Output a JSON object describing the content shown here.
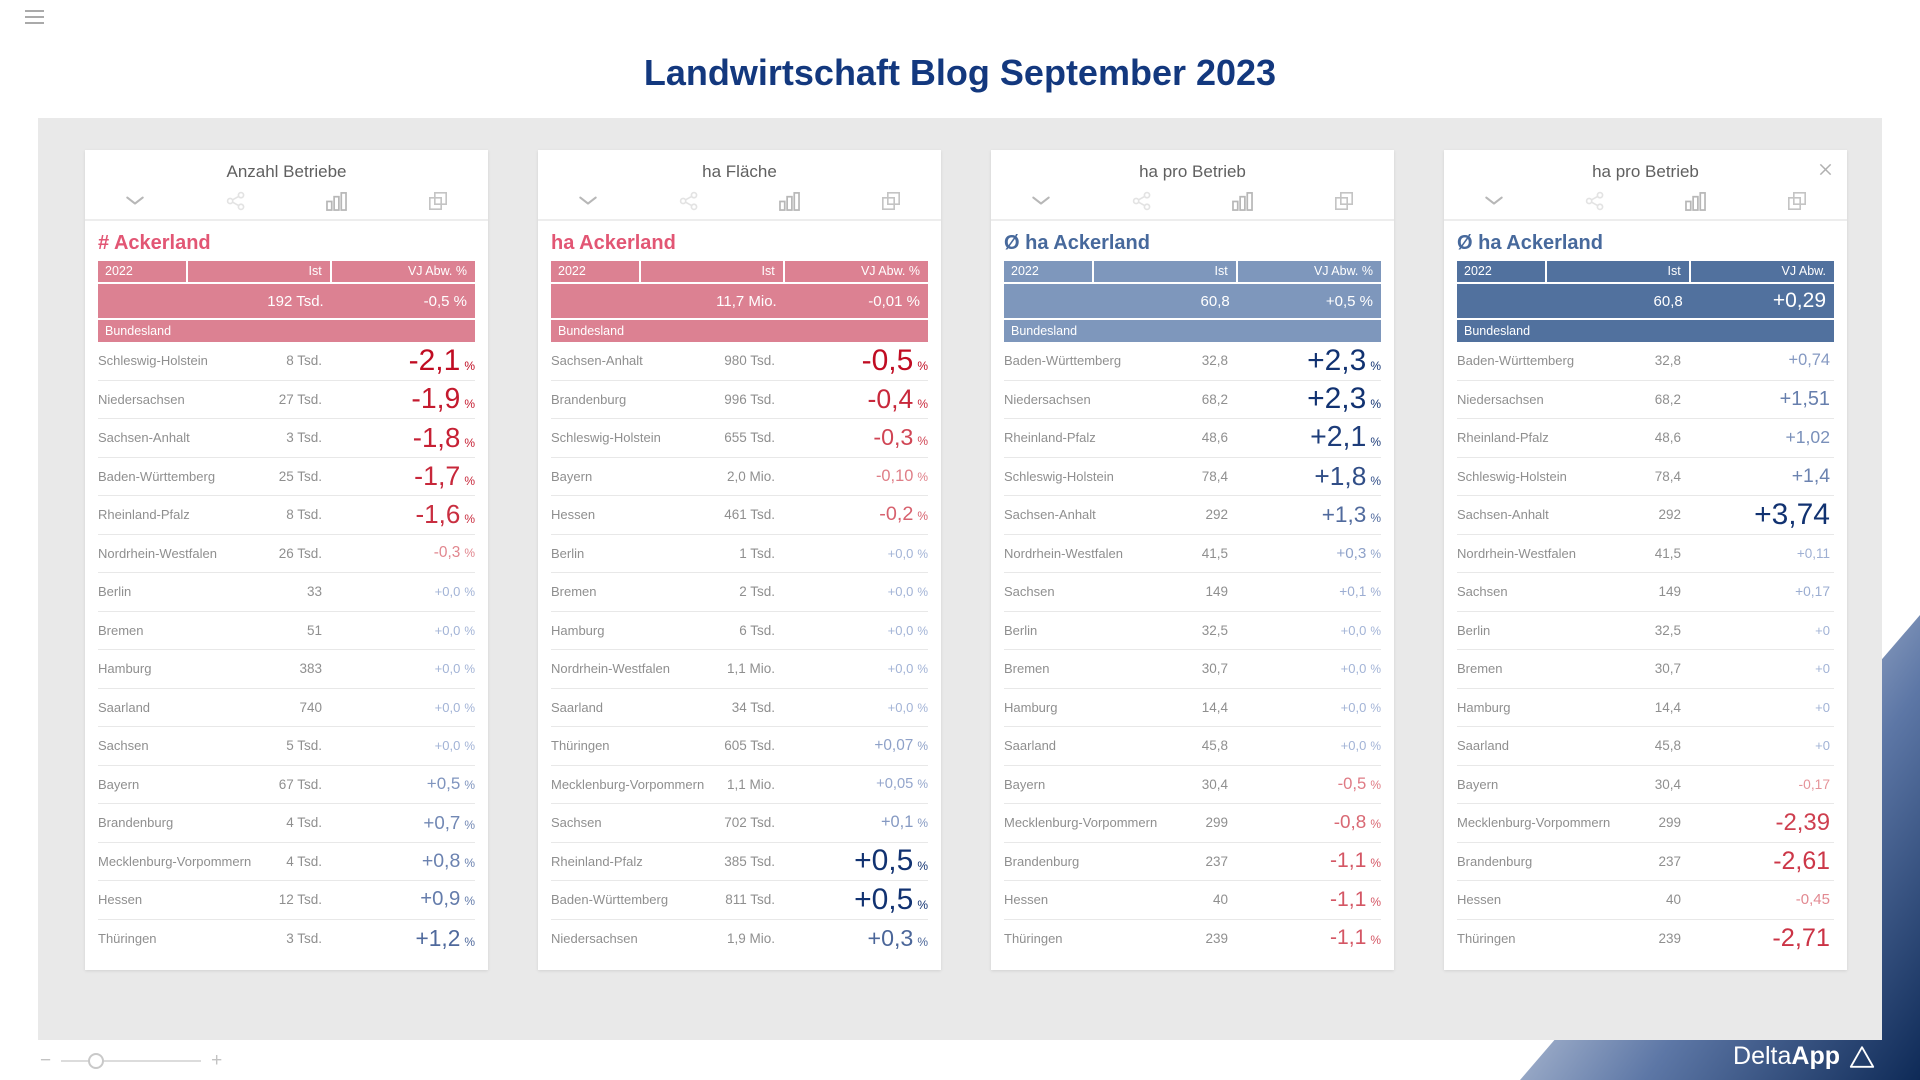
{
  "page": {
    "title": "Landwirtschaft Blog September 2023",
    "title_color": "#13387e",
    "board_color": "#e9e9e9",
    "brand": {
      "name_light": "Delta",
      "name_bold": "App",
      "triangle_icon": "△"
    }
  },
  "icons": {
    "menu": "hamburger",
    "collapse": "chevron-down",
    "share": "share-nodes",
    "chart": "column-chart",
    "overlay": "copy-windows",
    "close": "×"
  },
  "zoom_slider": {
    "minus_label": "−",
    "plus_label": "+",
    "position_pct": 25
  },
  "dev_color_scale": {
    "neg_low": "#e79aa0",
    "neg_high": "#c00c22",
    "pos_low": "#a2b3d6",
    "pos_high": "#113271"
  },
  "panels": [
    {
      "window_title": "Anzahl Betriebe",
      "kpi_title": "# Ackerland",
      "kpi_title_color": "#e25674",
      "header_color": "#dc8192",
      "closable": false,
      "columns": {
        "year": "2022",
        "ist": "Ist",
        "dev": "VJ Abw. %"
      },
      "total": {
        "ist": "192 Tsd.",
        "dev": "-0,5 %",
        "emphasized": false
      },
      "group_label": "Bundesland",
      "dev_unit": "%",
      "rows": [
        {
          "name": "Schleswig-Holstein",
          "ist": "8 Tsd.",
          "dev": "-2,1"
        },
        {
          "name": "Niedersachsen",
          "ist": "27 Tsd.",
          "dev": "-1,9"
        },
        {
          "name": "Sachsen-Anhalt",
          "ist": "3 Tsd.",
          "dev": "-1,8"
        },
        {
          "name": "Baden-Württemberg",
          "ist": "25 Tsd.",
          "dev": "-1,7"
        },
        {
          "name": "Rheinland-Pfalz",
          "ist": "8 Tsd.",
          "dev": "-1,6"
        },
        {
          "name": "Nordrhein-Westfalen",
          "ist": "26 Tsd.",
          "dev": "-0,3"
        },
        {
          "name": "Berlin",
          "ist": "33",
          "dev": "+0,0"
        },
        {
          "name": "Bremen",
          "ist": "51",
          "dev": "+0,0"
        },
        {
          "name": "Hamburg",
          "ist": "383",
          "dev": "+0,0"
        },
        {
          "name": "Saarland",
          "ist": "740",
          "dev": "+0,0"
        },
        {
          "name": "Sachsen",
          "ist": "5 Tsd.",
          "dev": "+0,0"
        },
        {
          "name": "Bayern",
          "ist": "67 Tsd.",
          "dev": "+0,5"
        },
        {
          "name": "Brandenburg",
          "ist": "4 Tsd.",
          "dev": "+0,7"
        },
        {
          "name": "Mecklenburg-Vorpommern",
          "ist": "4 Tsd.",
          "dev": "+0,8"
        },
        {
          "name": "Hessen",
          "ist": "12 Tsd.",
          "dev": "+0,9"
        },
        {
          "name": "Thüringen",
          "ist": "3 Tsd.",
          "dev": "+1,2"
        }
      ]
    },
    {
      "window_title": "ha Fläche",
      "kpi_title": "ha Ackerland",
      "kpi_title_color": "#e25674",
      "header_color": "#dc8192",
      "closable": false,
      "columns": {
        "year": "2022",
        "ist": "Ist",
        "dev": "VJ Abw. %"
      },
      "total": {
        "ist": "11,7 Mio.",
        "dev": "-0,01 %",
        "emphasized": false
      },
      "group_label": "Bundesland",
      "dev_unit": "%",
      "rows": [
        {
          "name": "Sachsen-Anhalt",
          "ist": "980 Tsd.",
          "dev": "-0,5"
        },
        {
          "name": "Brandenburg",
          "ist": "996 Tsd.",
          "dev": "-0,4"
        },
        {
          "name": "Schleswig-Holstein",
          "ist": "655 Tsd.",
          "dev": "-0,3"
        },
        {
          "name": "Bayern",
          "ist": "2,0 Mio.",
          "dev": "-0,10"
        },
        {
          "name": "Hessen",
          "ist": "461 Tsd.",
          "dev": "-0,2"
        },
        {
          "name": "Berlin",
          "ist": "1 Tsd.",
          "dev": "+0,0"
        },
        {
          "name": "Bremen",
          "ist": "2 Tsd.",
          "dev": "+0,0"
        },
        {
          "name": "Hamburg",
          "ist": "6 Tsd.",
          "dev": "+0,0"
        },
        {
          "name": "Nordrhein-Westfalen",
          "ist": "1,1 Mio.",
          "dev": "+0,0"
        },
        {
          "name": "Saarland",
          "ist": "34 Tsd.",
          "dev": "+0,0"
        },
        {
          "name": "Thüringen",
          "ist": "605 Tsd.",
          "dev": "+0,07"
        },
        {
          "name": "Mecklenburg-Vorpommern",
          "ist": "1,1 Mio.",
          "dev": "+0,05"
        },
        {
          "name": "Sachsen",
          "ist": "702 Tsd.",
          "dev": "+0,1"
        },
        {
          "name": "Rheinland-Pfalz",
          "ist": "385 Tsd.",
          "dev": "+0,5"
        },
        {
          "name": "Baden-Württemberg",
          "ist": "811 Tsd.",
          "dev": "+0,5"
        },
        {
          "name": "Niedersachsen",
          "ist": "1,9 Mio.",
          "dev": "+0,3"
        }
      ]
    },
    {
      "window_title": "ha pro Betrieb",
      "kpi_title": "Ø ha Ackerland",
      "kpi_title_color": "#47699c",
      "header_color": "#7e97bc",
      "closable": false,
      "columns": {
        "year": "2022",
        "ist": "Ist",
        "dev": "VJ Abw. %"
      },
      "total": {
        "ist": "60,8",
        "dev": "+0,5 %",
        "emphasized": false
      },
      "group_label": "Bundesland",
      "dev_unit": "%",
      "rows": [
        {
          "name": "Baden-Württemberg",
          "ist": "32,8",
          "dev": "+2,3"
        },
        {
          "name": "Niedersachsen",
          "ist": "68,2",
          "dev": "+2,3"
        },
        {
          "name": "Rheinland-Pfalz",
          "ist": "48,6",
          "dev": "+2,1"
        },
        {
          "name": "Schleswig-Holstein",
          "ist": "78,4",
          "dev": "+1,8"
        },
        {
          "name": "Sachsen-Anhalt",
          "ist": "292",
          "dev": "+1,3"
        },
        {
          "name": "Nordrhein-Westfalen",
          "ist": "41,5",
          "dev": "+0,3"
        },
        {
          "name": "Sachsen",
          "ist": "149",
          "dev": "+0,1"
        },
        {
          "name": "Berlin",
          "ist": "32,5",
          "dev": "+0,0"
        },
        {
          "name": "Bremen",
          "ist": "30,7",
          "dev": "+0,0"
        },
        {
          "name": "Hamburg",
          "ist": "14,4",
          "dev": "+0,0"
        },
        {
          "name": "Saarland",
          "ist": "45,8",
          "dev": "+0,0"
        },
        {
          "name": "Bayern",
          "ist": "30,4",
          "dev": "-0,5"
        },
        {
          "name": "Mecklenburg-Vorpommern",
          "ist": "299",
          "dev": "-0,8"
        },
        {
          "name": "Brandenburg",
          "ist": "237",
          "dev": "-1,1"
        },
        {
          "name": "Hessen",
          "ist": "40",
          "dev": "-1,1"
        },
        {
          "name": "Thüringen",
          "ist": "239",
          "dev": "-1,1"
        }
      ]
    },
    {
      "window_title": "ha pro Betrieb",
      "kpi_title": "Ø ha Ackerland",
      "kpi_title_color": "#47699c",
      "header_color": "#51719e",
      "closable": true,
      "columns": {
        "year": "2022",
        "ist": "Ist",
        "dev": "VJ Abw."
      },
      "total": {
        "ist": "60,8",
        "dev": "+0,29",
        "emphasized": true
      },
      "group_label": "Bundesland",
      "dev_unit": "",
      "rows": [
        {
          "name": "Baden-Württemberg",
          "ist": "32,8",
          "dev": "+0,74"
        },
        {
          "name": "Niedersachsen",
          "ist": "68,2",
          "dev": "+1,51"
        },
        {
          "name": "Rheinland-Pfalz",
          "ist": "48,6",
          "dev": "+1,02"
        },
        {
          "name": "Schleswig-Holstein",
          "ist": "78,4",
          "dev": "+1,4"
        },
        {
          "name": "Sachsen-Anhalt",
          "ist": "292",
          "dev": "+3,74"
        },
        {
          "name": "Nordrhein-Westfalen",
          "ist": "41,5",
          "dev": "+0,11"
        },
        {
          "name": "Sachsen",
          "ist": "149",
          "dev": "+0,17"
        },
        {
          "name": "Berlin",
          "ist": "32,5",
          "dev": "+0"
        },
        {
          "name": "Bremen",
          "ist": "30,7",
          "dev": "+0"
        },
        {
          "name": "Hamburg",
          "ist": "14,4",
          "dev": "+0"
        },
        {
          "name": "Saarland",
          "ist": "45,8",
          "dev": "+0"
        },
        {
          "name": "Bayern",
          "ist": "30,4",
          "dev": "-0,17"
        },
        {
          "name": "Mecklenburg-Vorpommern",
          "ist": "299",
          "dev": "-2,39"
        },
        {
          "name": "Brandenburg",
          "ist": "237",
          "dev": "-2,61"
        },
        {
          "name": "Hessen",
          "ist": "40",
          "dev": "-0,45"
        },
        {
          "name": "Thüringen",
          "ist": "239",
          "dev": "-2,71"
        }
      ]
    }
  ]
}
